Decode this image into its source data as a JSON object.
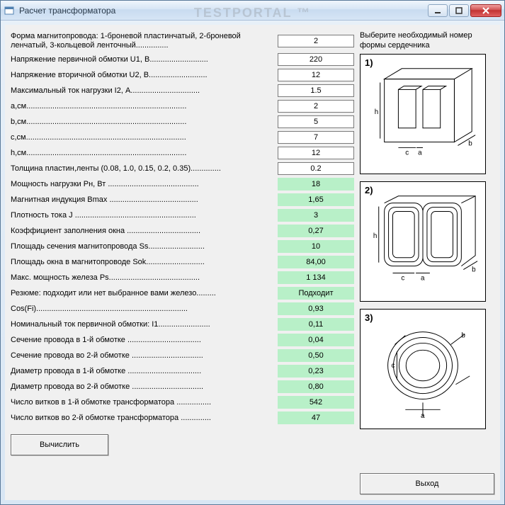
{
  "window": {
    "title": "Расчет трансформатора",
    "watermark": "TESTPORTAL ™"
  },
  "right_panel": {
    "header": "Выберите необходимый номер формы сердечника",
    "cores": [
      {
        "num": "1)"
      },
      {
        "num": "2)"
      },
      {
        "num": "3)"
      }
    ]
  },
  "inputs": [
    {
      "label": "Форма магнитопровода: 1-броневой пластинчатый, 2-броневой ленчатый, 3-кольцевой ленточный...............",
      "value": "2",
      "tall": true
    },
    {
      "label": "Напряжение первичной обмотки U1, В...........................",
      "value": "220"
    },
    {
      "label": "Напряжение вторичной обмотки U2, В...........................",
      "value": "12"
    },
    {
      "label": "Максимальный ток нагрузки I2, А................................",
      "value": "1.5"
    },
    {
      "label": "a,см..........................................................................",
      "value": "2"
    },
    {
      "label": "b,см..........................................................................",
      "value": "5"
    },
    {
      "label": "c,см..........................................................................",
      "value": "7"
    },
    {
      "label": "h,см..........................................................................",
      "value": "12"
    },
    {
      "label": "Толщина пластин,ленты (0.08, 1.0, 0.15, 0.2, 0.35)..............",
      "value": "0.2"
    }
  ],
  "outputs": [
    {
      "label": "Мощность нагрузки Pн, Вт ..........................................",
      "value": "18"
    },
    {
      "label": "Магнитная индукция Bmax .........................................",
      "value": "1,65"
    },
    {
      "label": "Плотность тока J ........................................................",
      "value": "3"
    },
    {
      "label": "Коэффициент заполнения окна ..................................",
      "value": "0,27"
    },
    {
      "label": "Площадь сечения магнитопровода Ss..........................",
      "value": "10"
    },
    {
      "label": "Площадь окна в магнитопроводе Sok...........................",
      "value": "84,00"
    },
    {
      "label": "Макс. мощность железа Ps..........................................",
      "value": "1 134"
    },
    {
      "label": "Резюме: подходит или нет выбранное вами железо.........",
      "value": "Подходит"
    },
    {
      "label": "Cos(Fi)......................................................................",
      "value": "0,93"
    },
    {
      "label": "Номинальный ток первичной обмотки: I1........................",
      "value": "0,11"
    },
    {
      "label": "Сечение провода в 1-й обмотке ..................................",
      "value": "0,04"
    },
    {
      "label": "Сечение провода во 2-й обмотке .................................",
      "value": "0,50"
    },
    {
      "label": "Диаметр провода в 1-й обмотке ..................................",
      "value": "0,23"
    },
    {
      "label": "Диаметр провода во 2-й обмотке .................................",
      "value": "0,80"
    },
    {
      "label": "Число витков в 1-й обмотке трансформатора ................",
      "value": "542"
    },
    {
      "label": "Число витков во 2-й обмотке трансформатора ..............",
      "value": "47"
    }
  ],
  "buttons": {
    "calculate": "Вычислить",
    "exit": "Выход"
  },
  "colors": {
    "output_bg": "#b8f0c8",
    "input_bg": "#ffffff",
    "client_bg": "#f0f0f0"
  }
}
